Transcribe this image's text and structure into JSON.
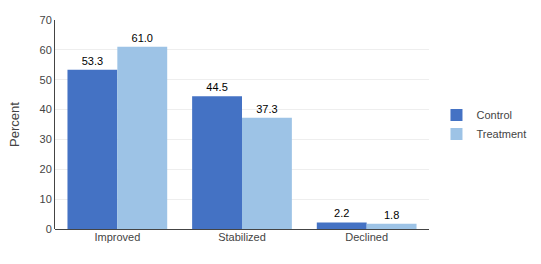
{
  "chart_data": {
    "type": "bar",
    "categories": [
      "Improved",
      "Stabilized",
      "Declined"
    ],
    "series": [
      {
        "name": "Control",
        "color": "#4472c4",
        "values": [
          53.3,
          44.5,
          2.2
        ]
      },
      {
        "name": "Treatment",
        "color": "#9dc3e6",
        "values": [
          61.0,
          37.3,
          1.8
        ],
        "value_labels": [
          "61.0",
          "37.3",
          "1.8"
        ]
      }
    ],
    "ylabel": "Percent",
    "ylim": [
      0,
      70
    ],
    "yticks": [
      0,
      10,
      20,
      30,
      40,
      50,
      60,
      70
    ],
    "grid": true,
    "legend": "right",
    "data_labels": true
  }
}
